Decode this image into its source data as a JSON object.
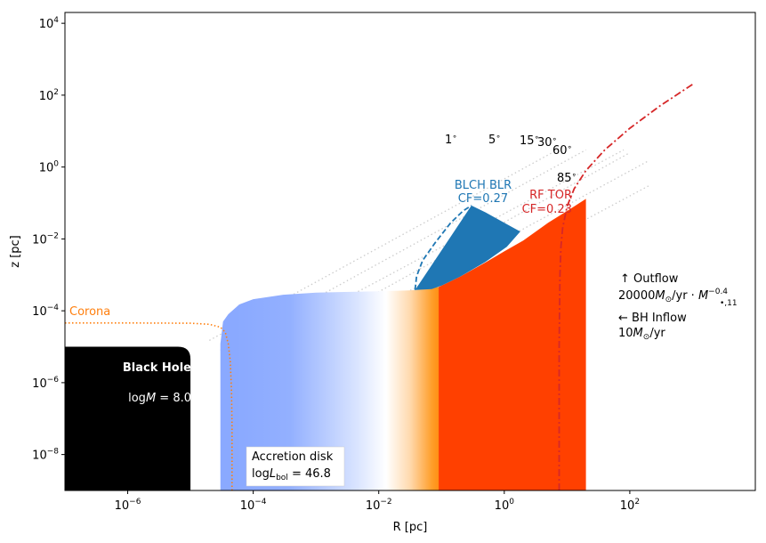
{
  "chart_data": {
    "type": "line",
    "xlabel": "R [pc]",
    "ylabel": "z [pc]",
    "x_scale": "log",
    "y_scale": "log",
    "xlim": [
      1e-07,
      10000
    ],
    "ylim": [
      1e-09,
      20000
    ],
    "x_ticks": [
      {
        "value": 1e-06,
        "base": "10",
        "exp": "−6"
      },
      {
        "value": 0.0001,
        "base": "10",
        "exp": "−4"
      },
      {
        "value": 0.01,
        "base": "10",
        "exp": "−2"
      },
      {
        "value": 1,
        "base": "10",
        "exp": "0"
      },
      {
        "value": 100,
        "base": "10",
        "exp": "2"
      }
    ],
    "y_ticks": [
      {
        "value": 1e-08,
        "base": "10",
        "exp": "−8"
      },
      {
        "value": 1e-06,
        "base": "10",
        "exp": "−6"
      },
      {
        "value": 0.0001,
        "base": "10",
        "exp": "−4"
      },
      {
        "value": 0.01,
        "base": "10",
        "exp": "−2"
      },
      {
        "value": 1,
        "base": "10",
        "exp": "0"
      },
      {
        "value": 100,
        "base": "10",
        "exp": "2"
      },
      {
        "value": 10000,
        "base": "10",
        "exp": "4"
      }
    ],
    "colors": {
      "black_hole": "#000000",
      "disk_inner": "#8aa9ff",
      "disk_mid": "#ffffff",
      "disk_outer": "#ff8c00",
      "torus": "#ff4000",
      "blr": "#1f77b4",
      "corona": "#ff7f0e",
      "outflow": "#d62728",
      "sightline": "#cccccc"
    },
    "black_hole": {
      "title": "Black Hole",
      "label_prefix": "log",
      "label_var": "M",
      "label_value": " = 8.0"
    },
    "corona": {
      "label": "Corona",
      "curve": [
        [
          1e-07,
          4.6e-05
        ],
        [
          1e-06,
          4.6e-05
        ],
        [
          1e-05,
          4.5e-05
        ],
        [
          2e-05,
          4.2e-05
        ],
        [
          3e-05,
          3.5e-05
        ],
        [
          3.6e-05,
          2.5e-05
        ],
        [
          4e-05,
          1.2e-05
        ],
        [
          4.3e-05,
          4e-06
        ],
        [
          4.5e-05,
          6e-07
        ],
        [
          4.6e-05,
          6e-08
        ],
        [
          4.6e-05,
          1e-09
        ]
      ]
    },
    "disk": {
      "line1": "Accretion disk",
      "label_prefix": "log",
      "label_var": "L",
      "label_sub": "bol",
      "label_value": " = 46.8",
      "top": [
        [
          3e-05,
          1.2e-05
        ],
        [
          3.3e-05,
          5e-05
        ],
        [
          4e-05,
          8e-05
        ],
        [
          6e-05,
          0.00015
        ],
        [
          0.0001,
          0.00021
        ],
        [
          0.0003,
          0.00028
        ],
        [
          0.001,
          0.00032
        ],
        [
          0.01,
          0.00035
        ],
        [
          0.03,
          0.00037
        ],
        [
          0.04,
          0.00038
        ]
      ]
    },
    "torus": {
      "label": "RF TOR",
      "cf_label": "CF=0.23",
      "top": [
        [
          0.04,
          0.00038
        ],
        [
          0.07,
          0.0004
        ],
        [
          0.1,
          0.0005
        ],
        [
          0.2,
          0.0009
        ],
        [
          0.5,
          0.0022
        ],
        [
          1,
          0.0045
        ],
        [
          2,
          0.009
        ],
        [
          5,
          0.028
        ],
        [
          10,
          0.06
        ],
        [
          20,
          0.13
        ]
      ],
      "r_max": 20
    },
    "blr": {
      "label": "BLCH BLR",
      "cf_label": "CF=0.27",
      "wedge": [
        [
          0.038,
          0.00038
        ],
        [
          0.3,
          0.085
        ],
        [
          0.5,
          0.055
        ],
        [
          1,
          0.028
        ],
        [
          1.8,
          0.016
        ],
        [
          1.1,
          0.006
        ],
        [
          0.5,
          0.0023
        ],
        [
          0.2,
          0.0009
        ],
        [
          0.1,
          0.0005
        ],
        [
          0.07,
          0.0004
        ]
      ],
      "dashed": [
        [
          0.038,
          0.00038
        ],
        [
          0.04,
          0.0009
        ],
        [
          0.05,
          0.0025
        ],
        [
          0.08,
          0.008
        ],
        [
          0.14,
          0.028
        ],
        [
          0.22,
          0.06
        ],
        [
          0.3,
          0.085
        ]
      ]
    },
    "sightlines": [
      {
        "label": "1",
        "end": [
          7,
          3
        ]
      },
      {
        "label": "5",
        "end": [
          20,
          3
        ]
      },
      {
        "label": "15",
        "end": [
          80,
          3
        ]
      },
      {
        "label": "30",
        "end": [
          100,
          2.5
        ]
      },
      {
        "label": "60",
        "end": [
          200,
          1.5
        ]
      },
      {
        "label": "85",
        "end": [
          200,
          0.3
        ]
      }
    ],
    "sightline_starts": [
      [
        2e-05,
        1.5e-05
      ],
      [
        3e-05,
        8e-06
      ],
      [
        5e-05,
        5e-06
      ],
      [
        5e-05,
        2e-06
      ],
      [
        5e-05,
        8e-07
      ],
      [
        5e-05,
        2e-07
      ]
    ],
    "degree_symbol": "∘",
    "outflow": {
      "curve": [
        [
          7.5,
          1e-09
        ],
        [
          7.5,
          1e-07
        ],
        [
          7.5,
          1e-05
        ],
        [
          7.7,
          0.001
        ],
        [
          8,
          0.006
        ],
        [
          8.5,
          0.02
        ],
        [
          10,
          0.08
        ],
        [
          13,
          0.25
        ],
        [
          20,
          0.8
        ],
        [
          40,
          3
        ],
        [
          100,
          12
        ],
        [
          300,
          50
        ],
        [
          1000,
          200
        ]
      ],
      "arrow_outflow": "↑",
      "outflow_word": "Outflow",
      "outflow_rate": "20000",
      "outflow_units": "/yr",
      "outflow_mdot": "M",
      "outflow_exp": "−0.4",
      "outflow_sub": "•,11",
      "arrow_inflow": "←",
      "inflow_word": "BH Inflow",
      "inflow_rate": "10",
      "inflow_units": "/yr",
      "msun_var": "M",
      "msun_sym": "⊙",
      "dot": " · "
    }
  }
}
